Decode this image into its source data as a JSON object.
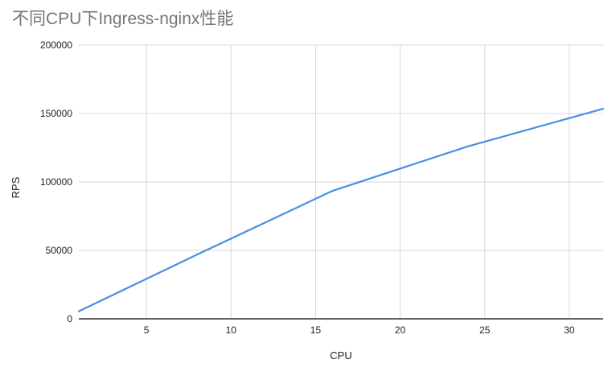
{
  "chart_data": {
    "type": "line",
    "title": "不同CPU下Ingress-nginx性能",
    "xlabel": "CPU",
    "ylabel": "RPS",
    "xlim": [
      1,
      32
    ],
    "ylim": [
      0,
      200000
    ],
    "x_ticks": [
      5,
      10,
      15,
      20,
      25,
      30
    ],
    "y_ticks": [
      0,
      50000,
      100000,
      150000,
      200000
    ],
    "grid": true,
    "legend": "none",
    "series": [
      {
        "color": "#4a90e2",
        "points": [
          {
            "x": 1,
            "y": 5500
          },
          {
            "x": 8,
            "y": 47000
          },
          {
            "x": 16,
            "y": 93500
          },
          {
            "x": 24,
            "y": 126000
          },
          {
            "x": 32,
            "y": 153500
          }
        ]
      }
    ],
    "colors": {
      "title": "#757575",
      "axis_text": "#222222",
      "grid": "#d9d9d9",
      "baseline": "#333333"
    }
  }
}
